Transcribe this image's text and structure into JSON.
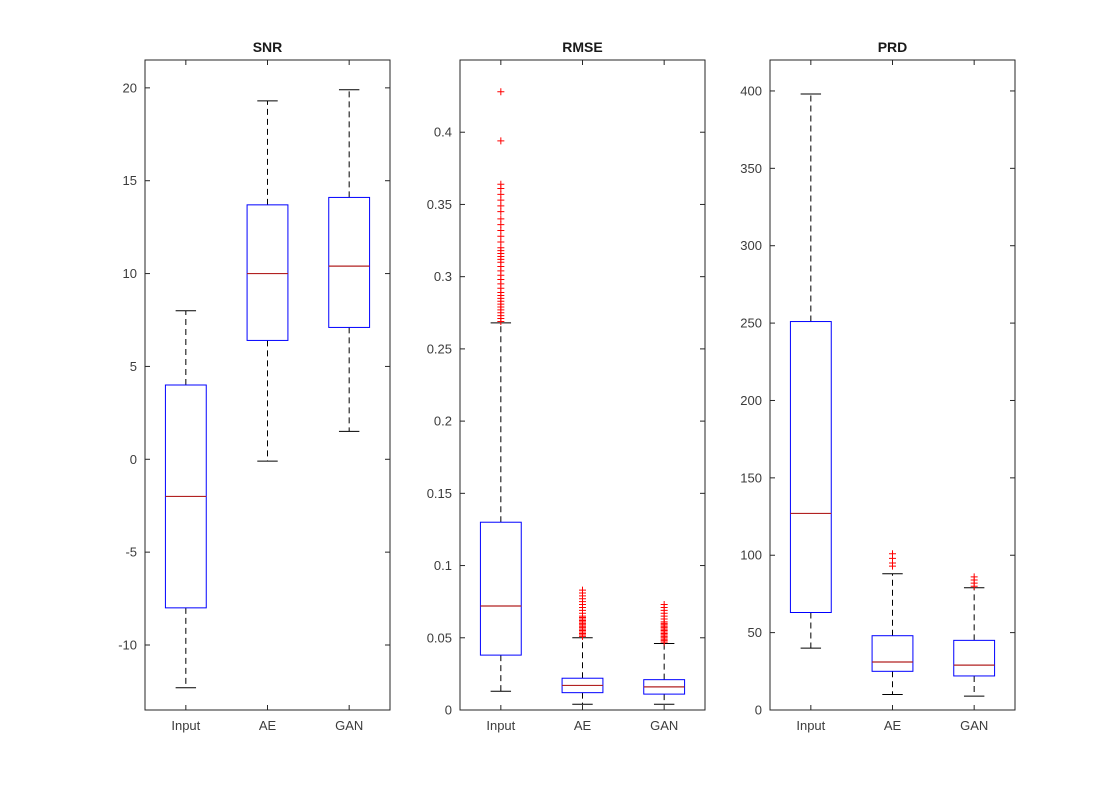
{
  "figure": {
    "background": "#ffffff"
  },
  "style": {
    "axis_color": "#262626",
    "tick_label_color": "#3c3c3c",
    "title_color": "#1a1a1a",
    "box_color": "#0000ff",
    "median_color": "#b22222",
    "whisker_color": "#000000",
    "outlier_color": "#ff0000"
  },
  "chart_data": [
    {
      "type": "boxplot",
      "title": "SNR",
      "xlabel": "",
      "ylabel": "",
      "grid": false,
      "categories": [
        "Input",
        "AE",
        "GAN"
      ],
      "ylim": [
        -13.5,
        21.5
      ],
      "yticks": [
        -10,
        -5,
        0,
        5,
        10,
        15,
        20
      ],
      "ytick_labels": [
        "-10",
        "-5",
        "0",
        "5",
        "10",
        "15",
        "20"
      ],
      "series": [
        {
          "category": "Input",
          "whisker_low": -12.3,
          "q1": -8.0,
          "median": -2.0,
          "q3": 4.0,
          "whisker_high": 8.0,
          "outliers": []
        },
        {
          "category": "AE",
          "whisker_low": -0.1,
          "q1": 6.4,
          "median": 10.0,
          "q3": 13.7,
          "whisker_high": 19.3,
          "outliers": []
        },
        {
          "category": "GAN",
          "whisker_low": 1.5,
          "q1": 7.1,
          "median": 10.4,
          "q3": 14.1,
          "whisker_high": 19.9,
          "outliers": []
        }
      ]
    },
    {
      "type": "boxplot",
      "title": "RMSE",
      "xlabel": "",
      "ylabel": "",
      "grid": false,
      "categories": [
        "Input",
        "AE",
        "GAN"
      ],
      "ylim": [
        0,
        0.45
      ],
      "yticks": [
        0,
        0.05,
        0.1,
        0.15,
        0.2,
        0.25,
        0.3,
        0.35,
        0.4
      ],
      "ytick_labels": [
        "0",
        "0.05",
        "0.1",
        "0.15",
        "0.2",
        "0.25",
        "0.3",
        "0.35",
        "0.4"
      ],
      "series": [
        {
          "category": "Input",
          "whisker_low": 0.013,
          "q1": 0.038,
          "median": 0.072,
          "q3": 0.13,
          "whisker_high": 0.268,
          "outliers": [
            0.428,
            0.394,
            0.364,
            0.361,
            0.357,
            0.353,
            0.349,
            0.345,
            0.34,
            0.336,
            0.332,
            0.328,
            0.324,
            0.32,
            0.318,
            0.316,
            0.314,
            0.312,
            0.31,
            0.307,
            0.304,
            0.301,
            0.298,
            0.295,
            0.292,
            0.289,
            0.287,
            0.285,
            0.283,
            0.281,
            0.279,
            0.277,
            0.275,
            0.273,
            0.271,
            0.269
          ]
        },
        {
          "category": "AE",
          "whisker_low": 0.004,
          "q1": 0.012,
          "median": 0.017,
          "q3": 0.022,
          "whisker_high": 0.05,
          "outliers": [
            0.083,
            0.081,
            0.079,
            0.077,
            0.075,
            0.073,
            0.071,
            0.069,
            0.067,
            0.065,
            0.064,
            0.063,
            0.062,
            0.061,
            0.06,
            0.059,
            0.058,
            0.057,
            0.056,
            0.055,
            0.054,
            0.053,
            0.052,
            0.051
          ]
        },
        {
          "category": "GAN",
          "whisker_low": 0.004,
          "q1": 0.011,
          "median": 0.016,
          "q3": 0.021,
          "whisker_high": 0.046,
          "outliers": [
            0.073,
            0.071,
            0.069,
            0.067,
            0.065,
            0.063,
            0.061,
            0.06,
            0.059,
            0.058,
            0.057,
            0.056,
            0.055,
            0.054,
            0.053,
            0.052,
            0.051,
            0.05,
            0.049,
            0.048,
            0.047
          ]
        }
      ]
    },
    {
      "type": "boxplot",
      "title": "PRD",
      "xlabel": "",
      "ylabel": "",
      "grid": false,
      "categories": [
        "Input",
        "AE",
        "GAN"
      ],
      "ylim": [
        0,
        420
      ],
      "yticks": [
        0,
        50,
        100,
        150,
        200,
        250,
        300,
        350,
        400
      ],
      "ytick_labels": [
        "0",
        "50",
        "100",
        "150",
        "200",
        "250",
        "300",
        "350",
        "400"
      ],
      "series": [
        {
          "category": "Input",
          "whisker_low": 40,
          "q1": 63,
          "median": 127,
          "q3": 251,
          "whisker_high": 398,
          "outliers": []
        },
        {
          "category": "AE",
          "whisker_low": 10,
          "q1": 25,
          "median": 31,
          "q3": 48,
          "whisker_high": 88,
          "outliers": [
            101,
            98,
            95,
            93
          ]
        },
        {
          "category": "GAN",
          "whisker_low": 9,
          "q1": 22,
          "median": 29,
          "q3": 45,
          "whisker_high": 79,
          "outliers": [
            86,
            84,
            82,
            80
          ]
        }
      ]
    }
  ]
}
